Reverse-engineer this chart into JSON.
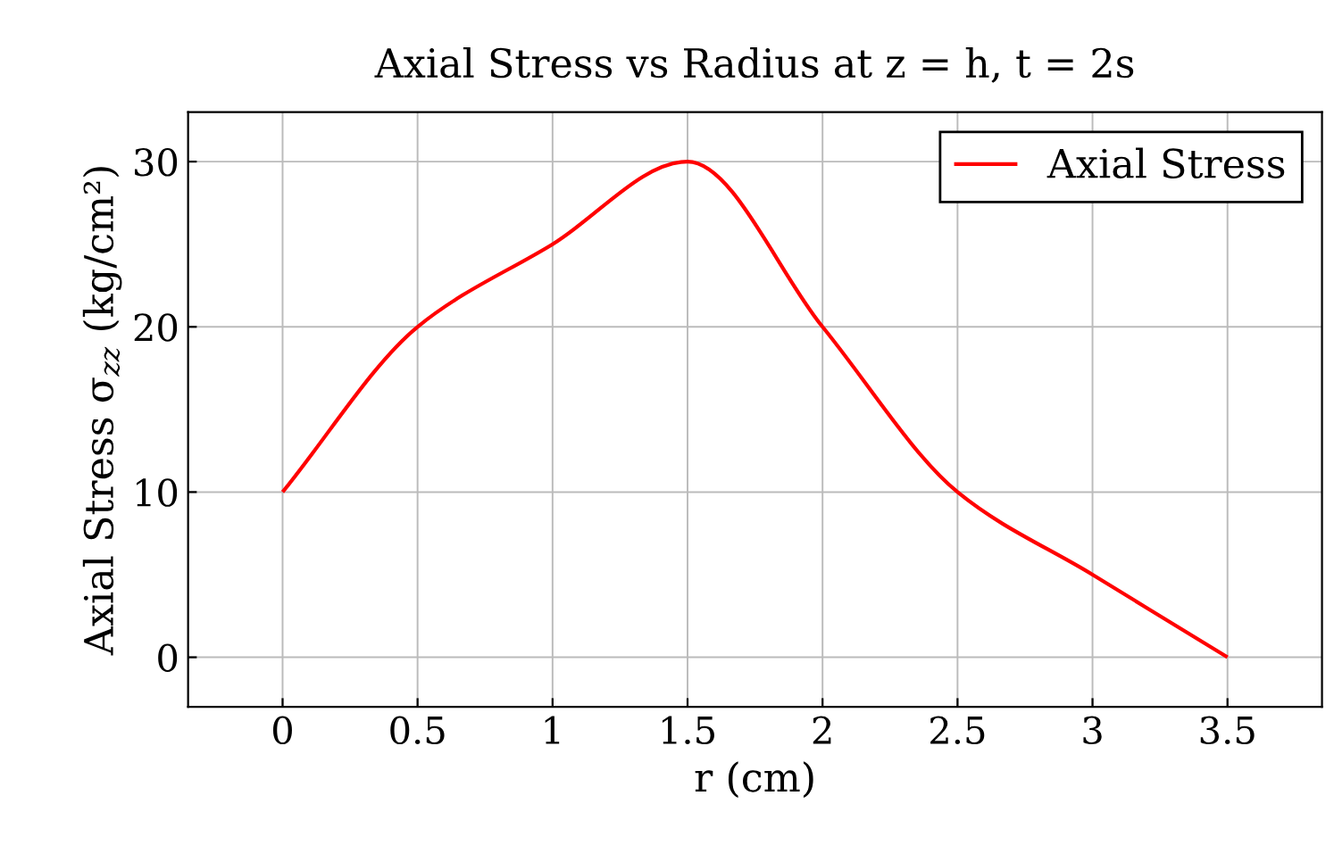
{
  "chart_data": {
    "type": "line",
    "title": "Axial Stress vs Radius at z = h, t = 2s",
    "xlabel": "r (cm)",
    "ylabel": "Axial Stress σ$_{zz}$ (kg/cm²)",
    "x": [
      0,
      0.5,
      1,
      1.5,
      2,
      2.5,
      3,
      3.5
    ],
    "series": [
      {
        "name": "Axial Stress",
        "color": "#ff0000",
        "values": [
          10,
          20,
          25,
          30,
          20,
          10,
          5,
          0
        ]
      }
    ],
    "xlim": [
      -0.35,
      3.85
    ],
    "ylim": [
      -3,
      33
    ],
    "xticks": [
      0,
      0.5,
      1,
      1.5,
      2,
      2.5,
      3,
      3.5
    ],
    "yticks": [
      0,
      10,
      20,
      30
    ],
    "grid": true,
    "legend": "top right",
    "marker": "none",
    "line_style": "solid"
  }
}
